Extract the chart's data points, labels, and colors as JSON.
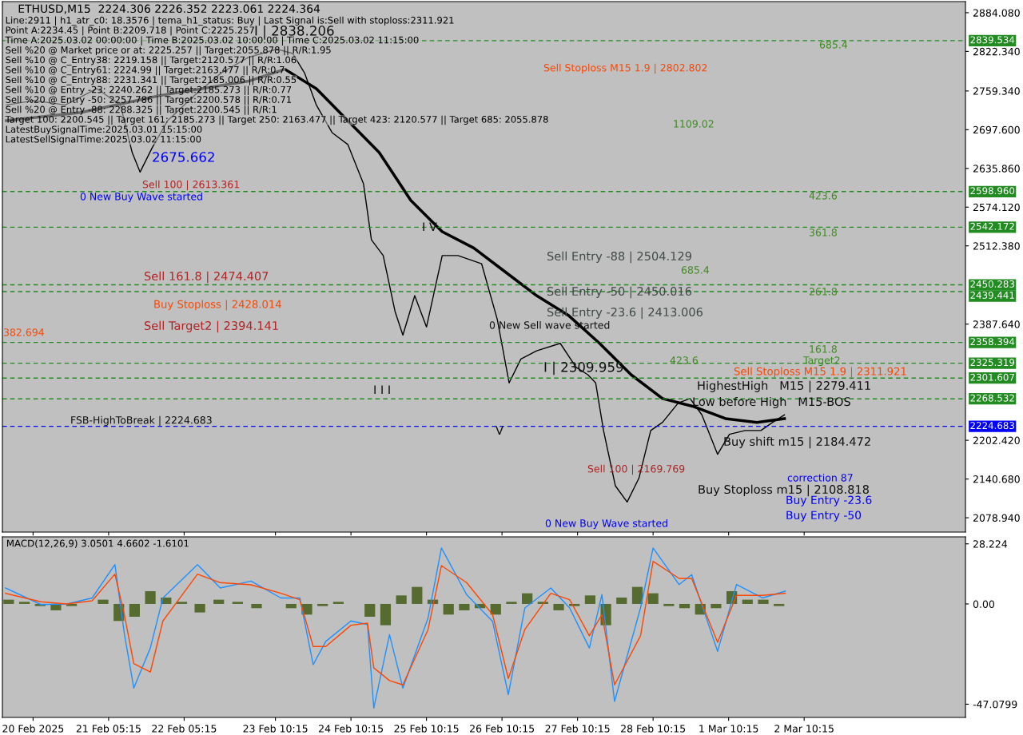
{
  "chart_data": [
    {
      "type": "line",
      "title": "ETHUSD,M15  2224.306 2226.352 2223.061 2224.364",
      "tick_labels": "y",
      "grid": false,
      "xlim": [
        "2025-02-19T19:30",
        "2025-03-04T13:30"
      ],
      "xticks": [
        {
          "value": "2025-02-20T05:15",
          "label": null
        },
        {
          "value": "2025-02-21T05:15",
          "label": null
        },
        {
          "value": "2025-02-22T05:15",
          "label": null
        },
        {
          "value": "2025-02-23T10:15",
          "label": null
        },
        {
          "value": "2025-02-24T10:15",
          "label": null
        },
        {
          "value": "2025-02-25T10:15",
          "label": null
        },
        {
          "value": "2025-02-26T10:15",
          "label": null
        },
        {
          "value": "2025-02-27T10:15",
          "label": null
        },
        {
          "value": "2025-02-28T10:15",
          "label": null
        },
        {
          "value": "2025-03-01T10:15",
          "label": null
        },
        {
          "value": "2025-03-02T10:15",
          "label": null
        }
      ],
      "ylim": [
        2056.1,
        2901.8
      ],
      "yticks": [
        {
          "value": 2884.08,
          "label": "2884.080"
        },
        {
          "value": 2822.34,
          "label": "2822.340"
        },
        {
          "value": 2759.34,
          "label": "2759.340"
        },
        {
          "value": 2697.6,
          "label": "2697.600"
        },
        {
          "value": 2635.86,
          "label": "2635.860"
        },
        {
          "value": 2574.12,
          "label": "2574.120"
        },
        {
          "value": 2512.38,
          "label": "2512.380"
        },
        {
          "value": 2387.64,
          "label": "2387.640"
        },
        {
          "value": 2202.42,
          "label": "2202.420"
        },
        {
          "value": 2140.68,
          "label": "2140.680"
        },
        {
          "value": 2078.94,
          "label": "2078.940"
        }
      ],
      "series": [
        {
          "color": "#000000",
          "x": [
            "2025-02-19T20:45",
            "2025-02-20T05:30",
            "2025-02-20T15:30",
            "2025-02-21T01:30",
            "2025-02-21T09:00",
            "2025-02-21T12:45",
            "2025-02-21T15:15",
            "2025-02-21T19:00",
            "2025-02-22T00:00",
            "2025-02-22T08:00",
            "2025-02-22T17:00",
            "2025-02-23T01:45",
            "2025-02-23T10:45",
            "2025-02-23T15:45",
            "2025-02-23T19:30",
            "2025-02-23T23:15",
            "2025-02-24T04:15",
            "2025-02-24T09:15",
            "2025-02-24T14:15",
            "2025-02-24T16:45",
            "2025-02-24T20:30",
            "2025-02-25T00:15",
            "2025-02-25T02:45",
            "2025-02-25T06:30",
            "2025-02-25T10:15",
            "2025-02-25T15:15",
            "2025-02-25T20:15",
            "2025-02-26T03:45",
            "2025-02-26T08:45",
            "2025-02-26T12:30",
            "2025-02-26T16:15",
            "2025-02-26T21:15",
            "2025-02-27T04:45",
            "2025-02-27T09:45",
            "2025-02-27T13:30",
            "2025-02-27T16:00",
            "2025-02-27T18:30",
            "2025-02-27T22:15",
            "2025-02-28T02:00",
            "2025-02-28T05:45",
            "2025-02-28T09:30",
            "2025-02-28T13:15",
            "2025-02-28T18:15",
            "2025-02-28T22:00",
            "2025-03-01T01:45",
            "2025-03-01T06:45",
            "2025-03-01T10:30",
            "2025-03-01T15:30",
            "2025-03-01T20:30",
            "2025-03-02T00:15",
            "2025-03-02T04:00"
          ],
          "values": [
            2737,
            2744,
            2737,
            2763,
            2737,
            2661,
            2630,
            2668,
            2712,
            2750,
            2788,
            2813,
            2826,
            2819,
            2788,
            2737,
            2693,
            2674,
            2611,
            2522,
            2497,
            2408,
            2370,
            2433,
            2383,
            2497,
            2497,
            2484,
            2395,
            2294,
            2332,
            2345,
            2357,
            2319,
            2307,
            2294,
            2218,
            2130,
            2104,
            2142,
            2218,
            2231,
            2262,
            2269,
            2243,
            2180,
            2212,
            2218,
            2218,
            2231,
            2243
          ]
        },
        {
          "color": "#000000",
          "x": [
            "2025-02-19T20:45",
            "2025-02-20T20:30",
            "2025-02-21T21:30",
            "2025-02-23T01:45",
            "2025-02-23T13:15",
            "2025-02-23T23:15",
            "2025-02-24T09:15",
            "2025-02-24T19:15",
            "2025-02-25T05:15",
            "2025-02-25T15:15",
            "2025-02-26T01:15",
            "2025-02-26T11:15",
            "2025-02-26T21:15",
            "2025-02-27T07:15",
            "2025-02-27T17:15",
            "2025-02-28T03:15",
            "2025-02-28T13:15",
            "2025-02-28T23:15",
            "2025-03-01T09:15",
            "2025-03-01T19:15",
            "2025-03-02T04:00"
          ],
          "values": [
            2712,
            2725,
            2752,
            2775,
            2794,
            2763,
            2712,
            2661,
            2585,
            2535,
            2509,
            2471,
            2433,
            2402,
            2357,
            2307,
            2269,
            2256,
            2237,
            2231,
            2237
          ]
        }
      ],
      "ref_lines": [
        {
          "axis": "y",
          "value": 2839.534,
          "label": "2839.534",
          "color": "#228b22",
          "line_style": "dashed"
        },
        {
          "axis": "y",
          "value": 2598.96,
          "label": "2598.960",
          "color": "#228b22",
          "line_style": "dashed"
        },
        {
          "axis": "y",
          "value": 2542.172,
          "label": "2542.172",
          "color": "#228b22",
          "line_style": "dashed"
        },
        {
          "axis": "y",
          "value": 2450.283,
          "label": "2450.283",
          "color": "#228b22",
          "line_style": "dashed"
        },
        {
          "axis": "y",
          "value": 2439.441,
          "label": "2439.441",
          "color": "#228b22",
          "line_style": "dashed"
        },
        {
          "axis": "y",
          "value": 2358.394,
          "label": "2358.394",
          "color": "#228b22",
          "line_style": "dashed"
        },
        {
          "axis": "y",
          "value": 2325.319,
          "label": "2325.319",
          "color": "#228b22",
          "line_style": "dashed"
        },
        {
          "axis": "y",
          "value": 2301.607,
          "label": "2301.607",
          "color": "#228b22",
          "line_style": "dashed"
        },
        {
          "axis": "y",
          "value": 2268.532,
          "label": "2268.532",
          "color": "#228b22",
          "line_style": "dashed"
        },
        {
          "axis": "y",
          "value": 2224.683,
          "label": "2224.683",
          "color": "#0000ff",
          "line_style": "dashed"
        }
      ],
      "annotations": [
        "Line:2911 | h1_atr_c0: 18.3576 | tema_h1_status: Buy | Last Signal is:Sell with stoploss:2311.921",
        "Point A:2234.45 | Point B:2209.718 | Point C:2225.257",
        "Time A:2025.03.02 00:00:00 | Time B:2025.03.02 10:00:00 | Time C:2025.03.02 11:15:00",
        "Sell %20 @ Market price or at: 2225.257 || Target:2055.878 || R/R:1.95",
        "Sell %10 @ C_Entry38: 2219.158 || Target:2120.577 || R/R:1.06",
        "Sell %10 @ C_Entry61: 2224.99 || Target:2163.477 || R/R:0.7",
        "Sell %10 @ C_Entry88: 2231.341 || Target:2185.006 || R/R:0.55",
        "Sell %10 @ Entry -23: 2240.262 || Target:2185.273 || R/R:0.77",
        "Sell %20 @ Entry -50: 2257.786 || Target:2200.578 || R/R:0.71",
        "Sell %20 @ Entry -88: 2288.325 || Target:2200.545 || R/R:1",
        "Target 100: 2200.545 || Target 161: 2185.273 || Target 250: 2163.477 || Target 423: 2120.577 || Target 685: 2055.878",
        "LatestBuySignalTime:2025.03.01 15:15:00",
        "LatestSellSignalTime:2025.03.02 11:15:00",
        "I | 2838.206",
        "Sell Stoploss M15 1.9 | 2802.802",
        "685.4",
        "1109.02",
        "2675.662",
        "0 New Buy Wave started",
        "Sell 100 | 2613.361",
        "423.6",
        "361.8",
        "Sell Entry -88 | 2504.129",
        "685.4",
        "Sell 161.8 | 2474.407",
        "Sell Entry -50 | 2450.016",
        "261.8",
        "Buy Stoploss | 2428.014",
        "Sell Entry -23.6 | 2413.006",
        "0 New Sell wave started",
        "Sell Target2 | 2394.141",
        "382.694",
        "161.8",
        "423.6",
        "I | 2309.959",
        "Target2",
        "Sell Stoploss M15 1.9 | 2311.921",
        "HighestHigh   M15 | 2279.411",
        "Low before High   M15-BOS",
        "FSB-HighToBreak | 2224.683",
        "Buy shift m15 | 2184.472",
        "Sell 100 | 2169.769",
        "correction 87",
        "Buy Stoploss m15 | 2108.818",
        "Buy Entry -23.6",
        "Buy Entry -50",
        "0 New Buy Wave started",
        "I V",
        "I I I",
        "V"
      ]
    },
    {
      "type": "line",
      "title": "MACD(12,26,9) 3.0501 4.6602 -1.6101",
      "grid": false,
      "xlim": [
        "2025-02-19T19:30",
        "2025-03-04T13:30"
      ],
      "xticks": [
        {
          "value": "2025-02-20T05:15",
          "label": "20 Feb 2025"
        },
        {
          "value": "2025-02-21T05:15",
          "label": "21 Feb 05:15"
        },
        {
          "value": "2025-02-22T05:15",
          "label": "22 Feb 05:15"
        },
        {
          "value": "2025-02-23T10:15",
          "label": "23 Feb 10:15"
        },
        {
          "value": "2025-02-24T10:15",
          "label": "24 Feb 10:15"
        },
        {
          "value": "2025-02-25T10:15",
          "label": "25 Feb 10:15"
        },
        {
          "value": "2025-02-26T10:15",
          "label": "26 Feb 10:15"
        },
        {
          "value": "2025-02-27T10:15",
          "label": "27 Feb 10:15"
        },
        {
          "value": "2025-02-28T10:15",
          "label": "28 Feb 10:15"
        },
        {
          "value": "2025-03-01T10:15",
          "label": "1 Mar 10:15"
        },
        {
          "value": "2025-03-02T10:15",
          "label": "2 Mar 10:15"
        }
      ],
      "ylim": [
        -53.3,
        31.5
      ],
      "yticks": [
        {
          "value": 28.224,
          "label": "28.224"
        },
        {
          "value": 0,
          "label": "0.00"
        },
        {
          "value": -47.0799,
          "label": "-47.0799"
        }
      ],
      "series": [
        {
          "type": "bar",
          "color": "#556b2f",
          "x": [
            "2025-02-19T21:30",
            "2025-02-20T02:30",
            "2025-02-20T07:30",
            "2025-02-20T12:30",
            "2025-02-20T17:30",
            "2025-02-20T22:30",
            "2025-02-21T03:30",
            "2025-02-21T08:30",
            "2025-02-21T13:30",
            "2025-02-21T18:30",
            "2025-02-21T23:30",
            "2025-02-22T04:30",
            "2025-02-22T10:15",
            "2025-02-22T16:15",
            "2025-02-22T22:15",
            "2025-02-23T04:15",
            "2025-02-23T10:15",
            "2025-02-23T15:15",
            "2025-02-23T20:15",
            "2025-02-24T01:15",
            "2025-02-24T06:15",
            "2025-02-24T11:15",
            "2025-02-24T16:15",
            "2025-02-24T21:15",
            "2025-02-25T02:15",
            "2025-02-25T07:15",
            "2025-02-25T12:15",
            "2025-02-25T17:15",
            "2025-02-25T22:15",
            "2025-02-26T03:15",
            "2025-02-26T08:15",
            "2025-02-26T13:15",
            "2025-02-26T18:15",
            "2025-02-26T23:15",
            "2025-02-27T04:15",
            "2025-02-27T09:15",
            "2025-02-27T14:15",
            "2025-02-27T19:15",
            "2025-02-28T00:15",
            "2025-02-28T05:15",
            "2025-02-28T10:15",
            "2025-02-28T15:15",
            "2025-02-28T20:15",
            "2025-03-01T01:15",
            "2025-03-01T06:15",
            "2025-03-01T11:15",
            "2025-03-01T16:15",
            "2025-03-01T21:15",
            "2025-03-02T02:15"
          ],
          "values": [
            2,
            1,
            -1,
            -3,
            -1,
            0,
            2,
            -8,
            -6,
            6,
            3,
            1,
            -4,
            2,
            1,
            -2,
            0,
            -2,
            -5,
            -1,
            1,
            0,
            -6,
            -10,
            4,
            8,
            2,
            -5,
            -3,
            -2,
            -5,
            1,
            5,
            1,
            -3,
            -1,
            4,
            -10,
            3,
            8,
            5,
            -1,
            -2,
            -5,
            -2,
            6,
            2,
            2,
            -1
          ]
        },
        {
          "type": "line",
          "color": "#1e90ff",
          "x": [
            "2025-02-19T20:30",
            "2025-02-20T07:45",
            "2025-02-20T16:00",
            "2025-02-21T00:00",
            "2025-02-21T07:15",
            "2025-02-21T10:15",
            "2025-02-21T13:15",
            "2025-02-21T18:30",
            "2025-02-21T22:30",
            "2025-02-22T09:30",
            "2025-02-22T16:45",
            "2025-02-23T02:30",
            "2025-02-23T12:00",
            "2025-02-23T18:00",
            "2025-02-23T22:15",
            "2025-02-24T02:15",
            "2025-02-24T10:15",
            "2025-02-24T15:30",
            "2025-02-24T17:30",
            "2025-02-24T22:30",
            "2025-02-25T02:45",
            "2025-02-25T10:45",
            "2025-02-25T15:00",
            "2025-02-25T23:00",
            "2025-02-26T07:15",
            "2025-02-26T12:15",
            "2025-02-26T17:30",
            "2025-02-27T01:45",
            "2025-02-27T07:45",
            "2025-02-27T14:00",
            "2025-02-27T18:00",
            "2025-02-27T22:00",
            "2025-02-28T06:15",
            "2025-02-28T10:15",
            "2025-02-28T18:30",
            "2025-02-28T22:30",
            "2025-03-01T06:45",
            "2025-03-01T12:45",
            "2025-03-01T21:00",
            "2025-03-02T04:15"
          ],
          "values": [
            7.5,
            -0.3,
            0,
            2.8,
            18.5,
            -14,
            -39.5,
            -20.7,
            2.8,
            18.5,
            7.5,
            10.7,
            2.8,
            2.8,
            -28.5,
            -17.6,
            -8,
            -9.7,
            -48.9,
            -14.4,
            -39.5,
            -6.6,
            26.3,
            4.4,
            -8.2,
            -42.6,
            -1.9,
            7.5,
            -1.9,
            -20.7,
            4.4,
            -45.8,
            -1.9,
            26.3,
            9.1,
            13.8,
            -22.3,
            9.1,
            2.8,
            6
          ]
        },
        {
          "type": "line",
          "color": "#ff4500",
          "x": [
            "2025-02-19T20:30",
            "2025-02-20T07:45",
            "2025-02-20T16:00",
            "2025-02-21T00:00",
            "2025-02-21T07:15",
            "2025-02-21T10:15",
            "2025-02-21T13:15",
            "2025-02-21T18:30",
            "2025-02-21T22:30",
            "2025-02-22T09:30",
            "2025-02-22T16:45",
            "2025-02-23T02:30",
            "2025-02-23T12:00",
            "2025-02-23T18:00",
            "2025-02-23T22:15",
            "2025-02-24T02:15",
            "2025-02-24T10:15",
            "2025-02-24T15:30",
            "2025-02-24T17:30",
            "2025-02-24T22:30",
            "2025-02-25T02:45",
            "2025-02-25T10:45",
            "2025-02-25T15:00",
            "2025-02-25T23:00",
            "2025-02-26T07:15",
            "2025-02-26T12:15",
            "2025-02-26T17:30",
            "2025-02-27T01:45",
            "2025-02-27T07:45",
            "2025-02-27T14:00",
            "2025-02-27T18:00",
            "2025-02-27T22:00",
            "2025-02-28T06:15",
            "2025-02-28T10:15",
            "2025-02-28T18:30",
            "2025-02-28T22:30",
            "2025-03-01T06:45",
            "2025-03-01T12:45",
            "2025-03-01T21:00",
            "2025-03-02T04:15"
          ],
          "values": [
            5,
            1,
            0,
            1.5,
            14,
            -5,
            -28,
            -32,
            -8,
            14,
            10,
            9,
            5,
            2,
            -20,
            -20,
            -10,
            -9,
            -30,
            -36,
            -38,
            -12,
            18,
            10,
            -5,
            -35,
            -12,
            5,
            2,
            -15,
            -5,
            -38,
            -15,
            20,
            12,
            12,
            -18,
            4,
            4,
            5
          ]
        }
      ]
    }
  ]
}
